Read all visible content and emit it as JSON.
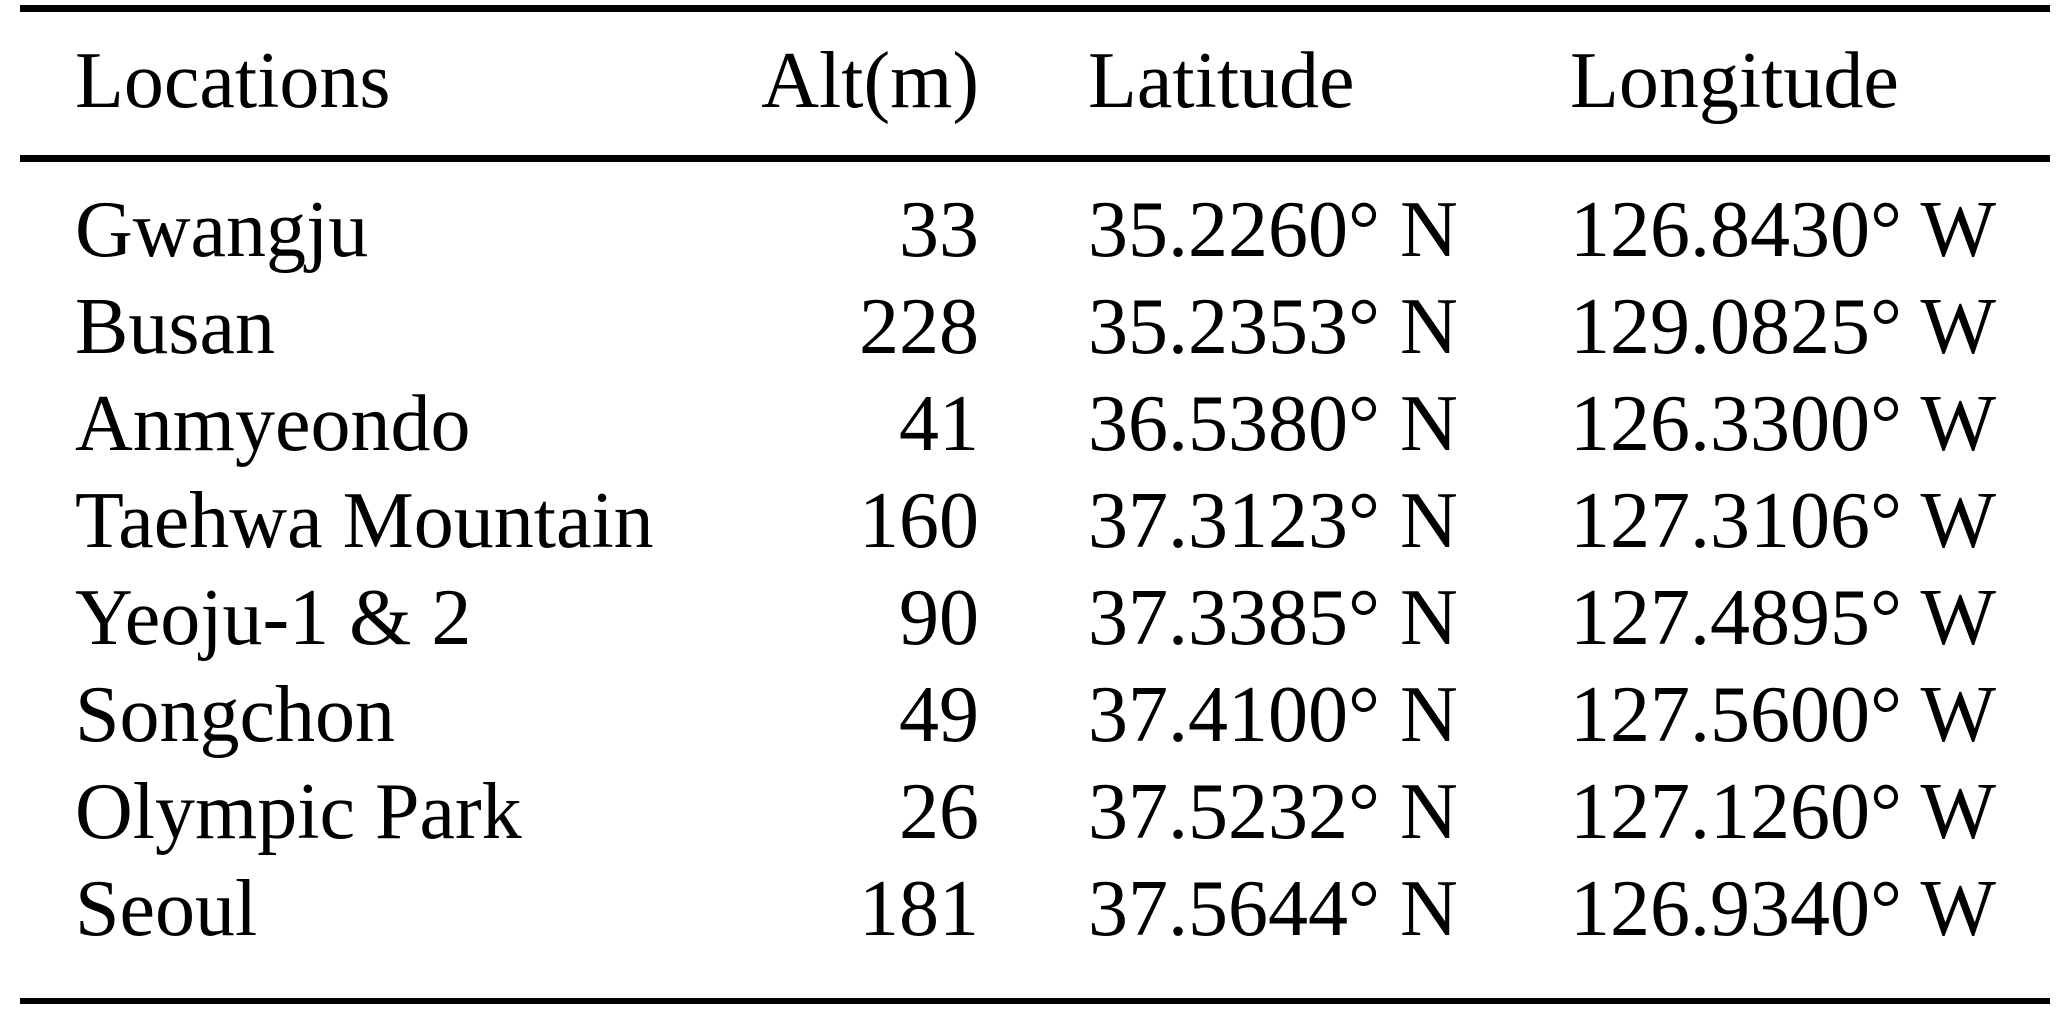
{
  "colors": {
    "background": "#ffffff",
    "text": "#000000",
    "rule": "#000000"
  },
  "table": {
    "columns": [
      "Locations",
      "Alt(m)",
      "Latitude",
      "Longitude"
    ],
    "rows": [
      {
        "location": "Gwangju",
        "alt": "33",
        "latitude": "35.2260° N",
        "longitude": "126.8430° W"
      },
      {
        "location": "Busan",
        "alt": "228",
        "latitude": "35.2353° N",
        "longitude": "129.0825° W"
      },
      {
        "location": "Anmyeondo",
        "alt": "41",
        "latitude": "36.5380° N",
        "longitude": "126.3300° W"
      },
      {
        "location": "Taehwa Mountain",
        "alt": "160",
        "latitude": "37.3123° N",
        "longitude": "127.3106° W"
      },
      {
        "location": "Yeoju-1 & 2",
        "alt": "90",
        "latitude": "37.3385° N",
        "longitude": "127.4895° W"
      },
      {
        "location": "Songchon",
        "alt": "49",
        "latitude": "37.4100° N",
        "longitude": "127.5600° W"
      },
      {
        "location": "Olympic Park",
        "alt": "26",
        "latitude": "37.5232° N",
        "longitude": "127.1260° W"
      },
      {
        "location": "Seoul",
        "alt": "181",
        "latitude": "37.5644° N",
        "longitude": "126.9340° W"
      }
    ]
  }
}
